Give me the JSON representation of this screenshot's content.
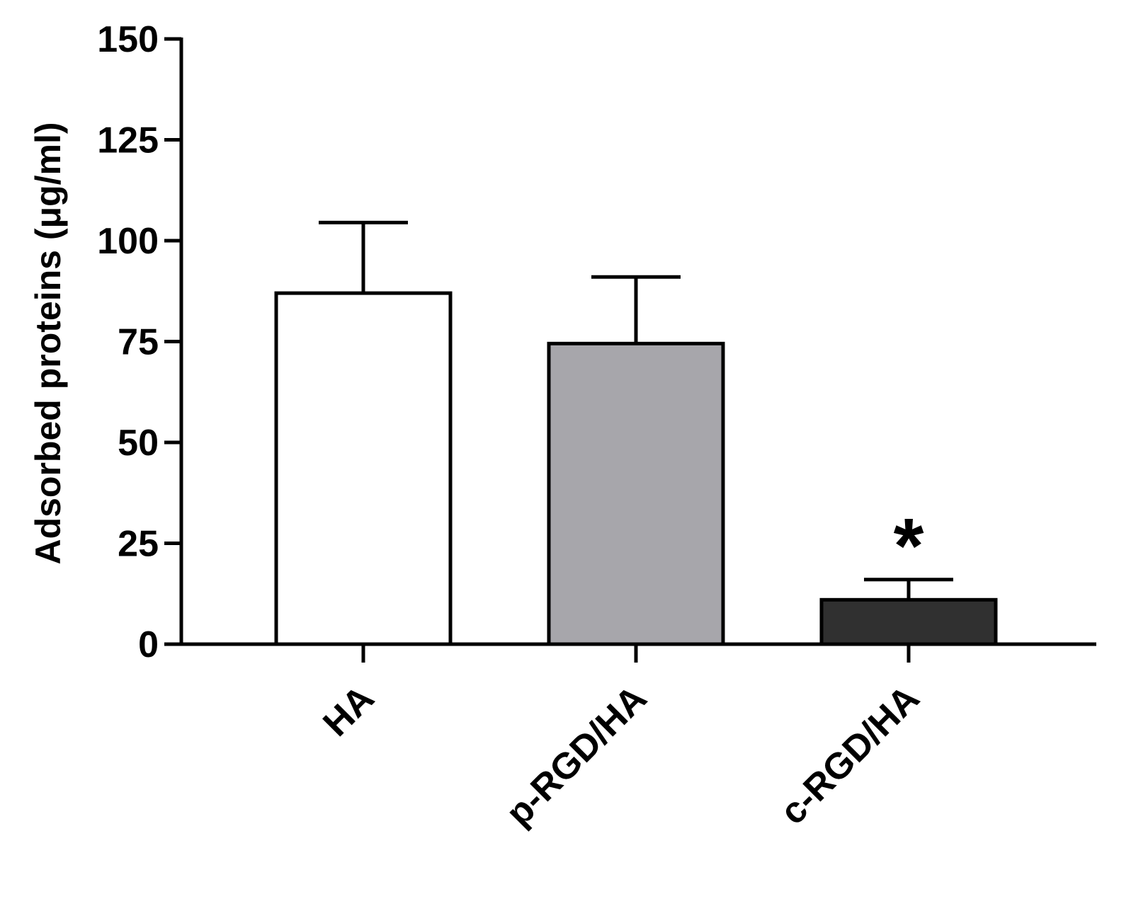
{
  "chart_data": {
    "type": "bar",
    "title": "",
    "xlabel": "",
    "ylabel": "Adsorbed proteins (μg/ml)",
    "ylim": [
      0,
      150
    ],
    "yticks": [
      0,
      25,
      50,
      75,
      100,
      125,
      150
    ],
    "grid": false,
    "categories": [
      "HA",
      "p-RGD/HA",
      "c-RGD/HA"
    ],
    "values": [
      87,
      74.5,
      11
    ],
    "errors": [
      17.5,
      16.5,
      5
    ],
    "bar_colors": [
      "#ffffff",
      "#a7a6ab",
      "#303030"
    ],
    "annotations": [
      {
        "category": "c-RGD/HA",
        "text": "*"
      }
    ]
  }
}
